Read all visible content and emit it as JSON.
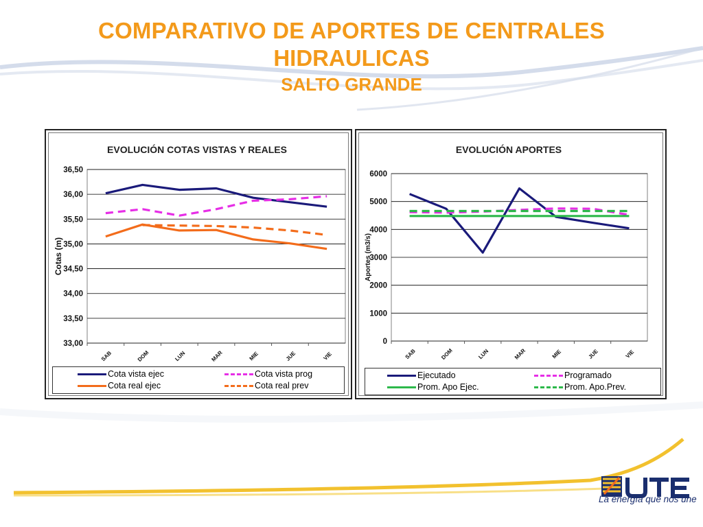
{
  "page": {
    "title_line1": "COMPARATIVO DE APORTES DE CENTRALES",
    "title_line2": "HIDRAULICAS",
    "subtitle": "SALTO GRANDE",
    "accent_color": "#f39a1b"
  },
  "logo": {
    "text": "UTE",
    "tagline": "La energía que nos une",
    "color": "#1a2e6e"
  },
  "chart_data": [
    {
      "type": "line",
      "title": "EVOLUCIÓN  COTAS VISTAS Y REALES",
      "ylabel": "Cotas (m)",
      "xlabel": "",
      "categories": [
        "SAB",
        "DOM",
        "LUN",
        "MAR",
        "MIE",
        "JUE",
        "VIE"
      ],
      "ylim": [
        33.0,
        36.5
      ],
      "yticks": [
        "33,00",
        "33,50",
        "34,00",
        "34,50",
        "35,00",
        "35,50",
        "36,00",
        "36,50"
      ],
      "ytick_values": [
        33.0,
        33.5,
        34.0,
        34.5,
        35.0,
        35.5,
        36.0,
        36.5
      ],
      "grid": true,
      "legend_position": "bottom",
      "series": [
        {
          "name": "Cota vista ejec",
          "values": [
            36.02,
            36.19,
            36.09,
            36.12,
            35.93,
            35.84,
            35.75
          ],
          "color": "#1a1a7a",
          "dashed": false
        },
        {
          "name": "Cota vista prog",
          "values": [
            35.62,
            35.7,
            35.57,
            35.7,
            35.87,
            35.9,
            35.96
          ],
          "color": "#e62ee6",
          "dashed": true
        },
        {
          "name": "Cota real ejec",
          "values": [
            35.15,
            35.39,
            35.27,
            35.28,
            35.09,
            35.01,
            34.9
          ],
          "color": "#f36c1b",
          "dashed": false
        },
        {
          "name": "Cota real prev",
          "values": [
            null,
            35.38,
            35.37,
            35.36,
            35.33,
            35.27,
            35.18
          ],
          "color": "#f36c1b",
          "dashed": true
        }
      ]
    },
    {
      "type": "line",
      "title": "EVOLUCIÓN  APORTES",
      "ylabel": "Aportes (m3/s)",
      "xlabel": "",
      "categories": [
        "SAB",
        "DOM",
        "LUN",
        "MAR",
        "MIE",
        "JUE",
        "VIE"
      ],
      "ylim": [
        0,
        6000
      ],
      "yticks": [
        "0",
        "1000",
        "2000",
        "3000",
        "4000",
        "5000",
        "6000"
      ],
      "ytick_values": [
        0,
        1000,
        2000,
        3000,
        4000,
        5000,
        6000
      ],
      "grid": true,
      "legend_position": "bottom",
      "series": [
        {
          "name": "Ejecutado",
          "values": [
            5270,
            4740,
            3170,
            5470,
            4450,
            4240,
            4040
          ],
          "color": "#1a1a7a",
          "dashed": false
        },
        {
          "name": "Programado",
          "values": [
            4620,
            4600,
            4640,
            4700,
            4750,
            4740,
            4520
          ],
          "color": "#e62ee6",
          "dashed": true
        },
        {
          "name": "Prom. Apo Ejec.",
          "values": [
            4480,
            4480,
            4480,
            4480,
            4480,
            4480,
            4480
          ],
          "color": "#2db84a",
          "dashed": false
        },
        {
          "name": "Prom. Apo.Prev.",
          "values": [
            4660,
            4660,
            4660,
            4660,
            4660,
            4660,
            4660
          ],
          "color": "#2db84a",
          "dashed": true
        }
      ]
    }
  ]
}
